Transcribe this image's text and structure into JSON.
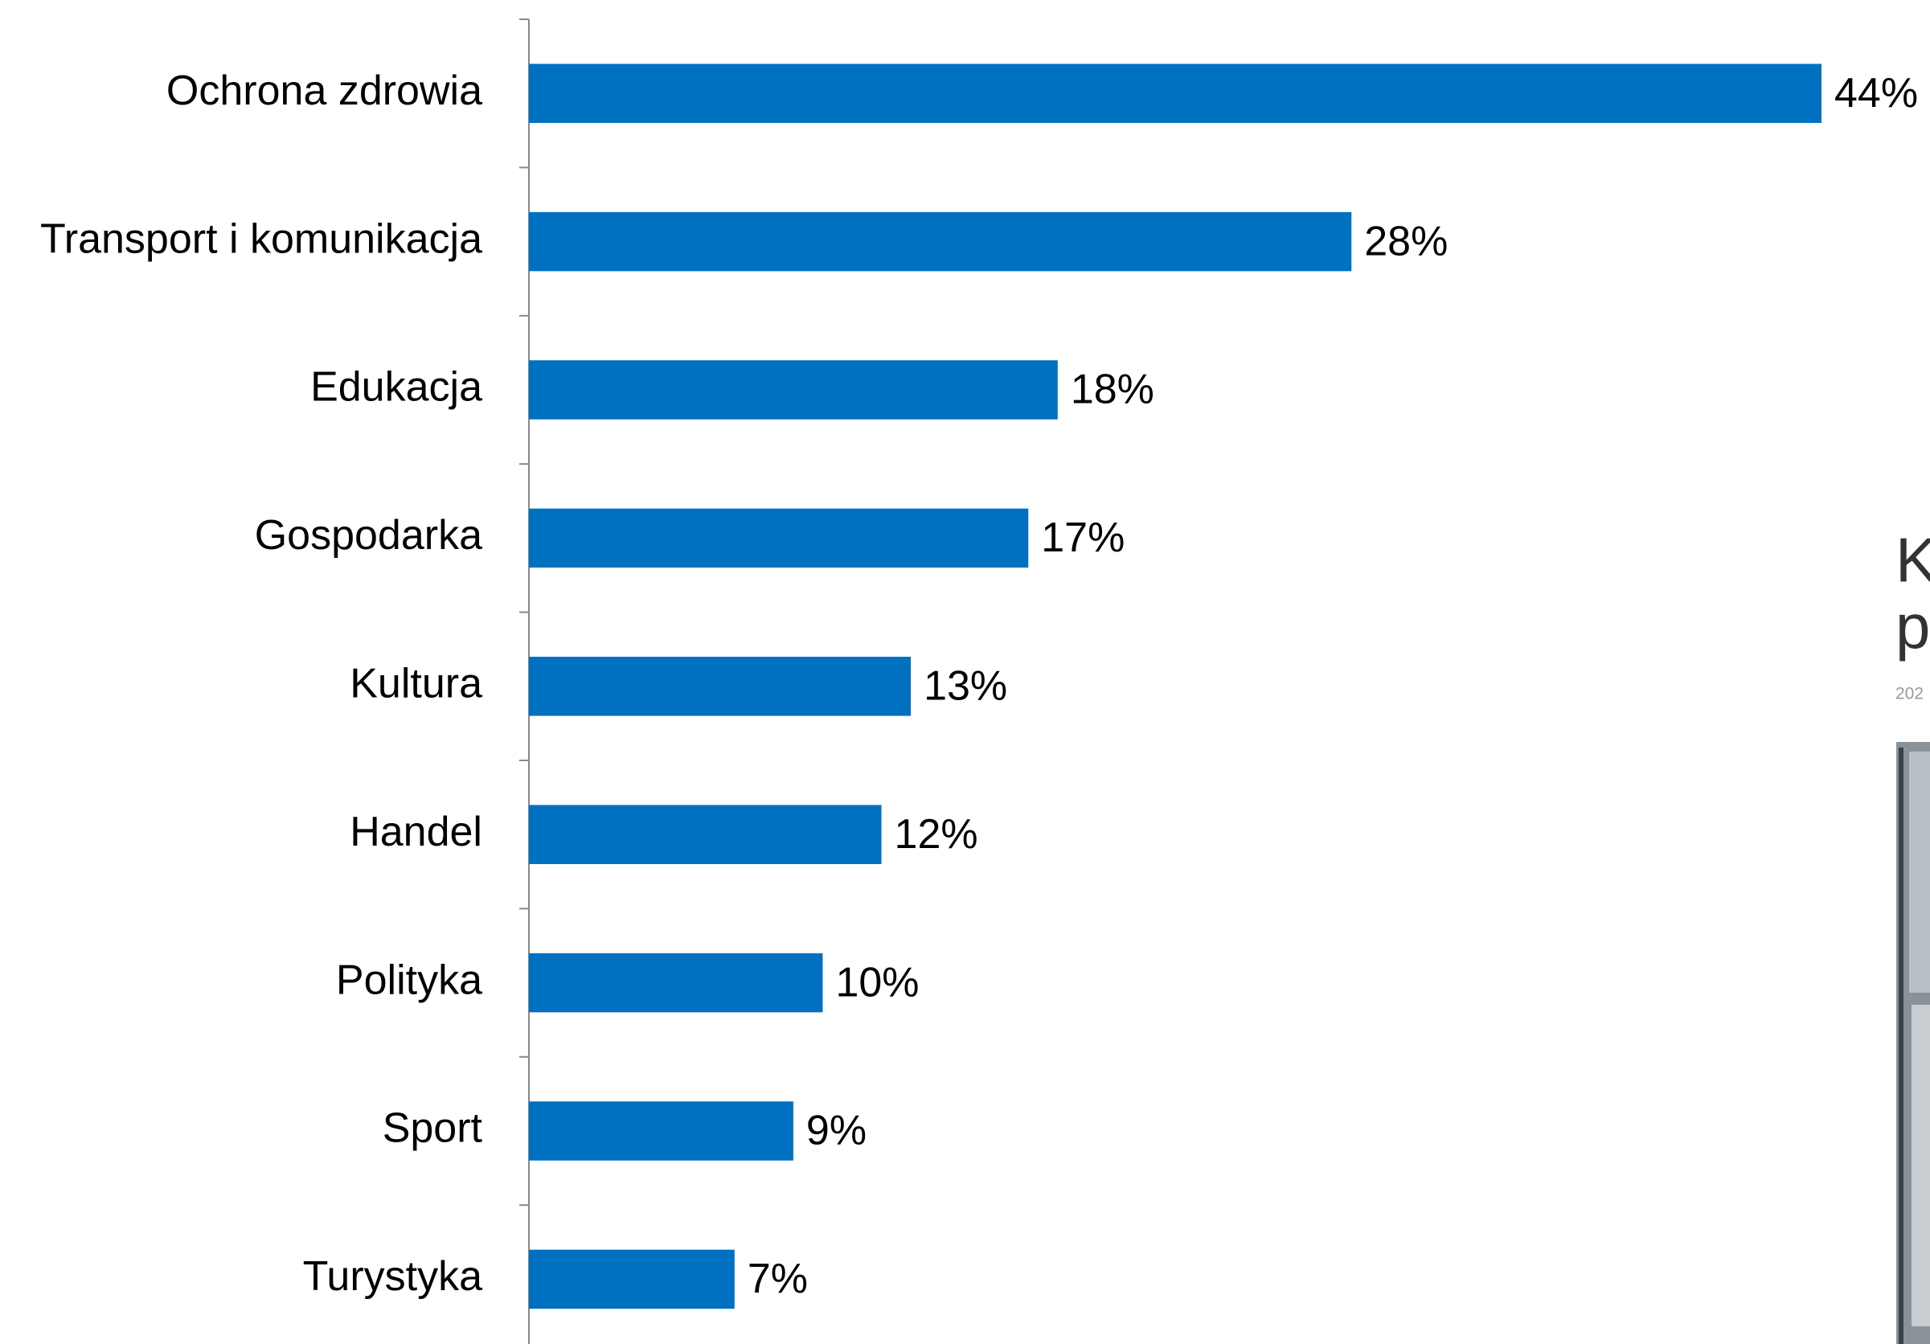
{
  "chart_data": {
    "type": "hbar",
    "categories": [
      "Ochrona zdrowia",
      "Transport i komunikacja",
      "Edukacja",
      "Gospodarka",
      "Kultura",
      "Handel",
      "Polityka",
      "Sport",
      "Turystyka"
    ],
    "values": [
      44,
      28,
      18,
      17,
      13,
      12,
      10,
      9,
      7
    ],
    "value_labels": [
      "44%",
      "28%",
      "18%",
      "17%",
      "13%",
      "12%",
      "10%",
      "9%",
      "7%"
    ],
    "color": "#0070c0",
    "xlim": [
      0,
      44
    ]
  },
  "cropped_panel": {
    "lines": [
      "K",
      "p"
    ],
    "date": "202"
  }
}
